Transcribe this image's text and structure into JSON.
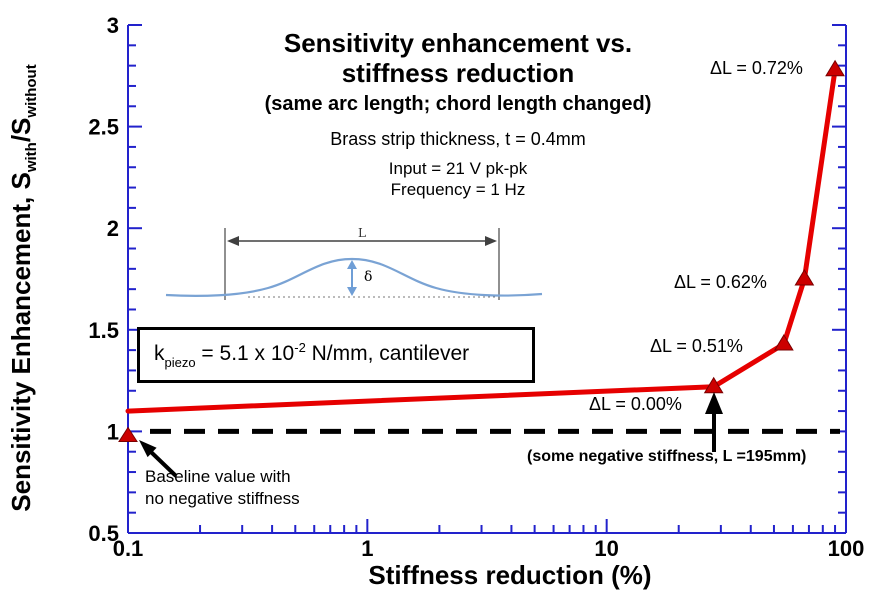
{
  "figure": {
    "title_line1": "Sensitivity enhancement vs.",
    "title_line2": "stiffness reduction",
    "subtitle": "(same arc length; chord length changed)",
    "conditions": [
      "Brass strip thickness, t = 0.4mm",
      "Input = 21 V pk-pk",
      "Frequency = 1 Hz"
    ]
  },
  "kbox": {
    "base": "k",
    "sub": "piezo",
    "mid": " = 5.1 x 10",
    "sup": "-2",
    "suffix": " N/mm, cantilever"
  },
  "ylabel_parts": {
    "pre": "Sensitivity Enhancement, S",
    "sub1": "with",
    "mid": "/S",
    "sub2": "without"
  },
  "annotations": {
    "negative_stiffness": "(some negative stiffness, L =195mm)",
    "baseline_line1": "Baseline value with",
    "baseline_line2": "no negative stiffness"
  },
  "inset": {
    "length_label": "L",
    "deflection_label": "δ"
  },
  "chart_data": {
    "type": "line",
    "title": "Sensitivity enhancement vs. stiffness reduction",
    "xlabel": "Stiffness reduction (%)",
    "ylabel": "Sensitivity Enhancement, S_with/S_without",
    "xscale": "log",
    "xlim": [
      0.1,
      100
    ],
    "ylim": [
      0.5,
      3
    ],
    "grid": false,
    "x_ticks": [
      0.1,
      1,
      10,
      100
    ],
    "x_tick_labels": [
      "0.1",
      "1",
      "10",
      "100"
    ],
    "y_ticks": [
      0.5,
      1,
      1.5,
      2,
      2.5,
      3
    ],
    "y_tick_labels": [
      "0.5",
      "1",
      "1.5",
      "2",
      "2.5",
      "3"
    ],
    "y_minor_step": 0.1,
    "axis_color": "#2222cc",
    "series": [
      {
        "name": "sensitivity-enhancement",
        "color": "#e60000",
        "marker": "triangle",
        "marker_color": "#cc0000",
        "x": [
          0.1,
          28,
          55,
          67,
          90
        ],
        "y": [
          1.1,
          1.22,
          1.43,
          1.75,
          2.78
        ],
        "point_labels": [
          "",
          "ΔL = 0.00%",
          "ΔL = 0.51%",
          "ΔL = 0.62%",
          "ΔL = 0.72%"
        ]
      }
    ],
    "baseline_point": {
      "x": 0.1,
      "y": 0.97,
      "label": "Baseline value with no negative stiffness",
      "color": "#cc0000"
    },
    "reference_line": {
      "y": 1.0,
      "style": "dashed",
      "color": "#000000"
    }
  }
}
